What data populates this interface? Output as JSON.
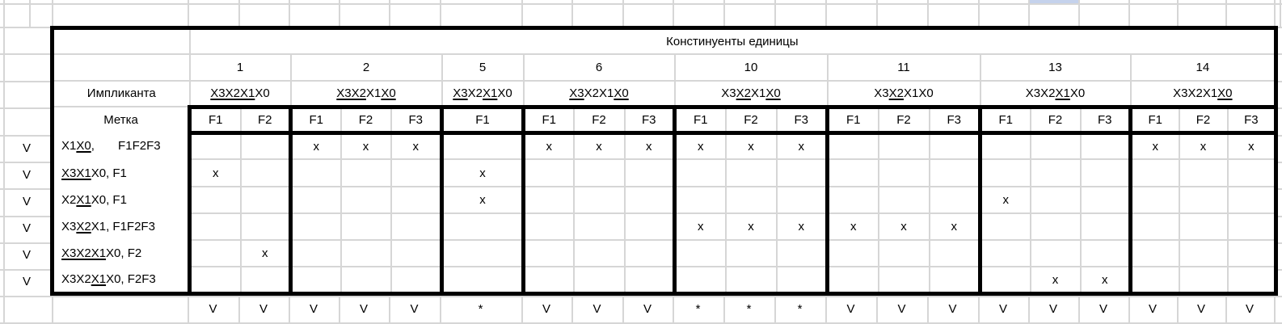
{
  "sheet": {
    "title": "Констинуенты единицы",
    "implicant_header": "Импликанта",
    "label_header": "Метка",
    "colors": {
      "highlight_cell": "#c5d2ec",
      "grid_line": "#d6d6d6",
      "table_border": "#000000"
    },
    "groups": [
      {
        "number": "1",
        "implicant": [
          {
            "t": "X3X2X1",
            "u": true
          },
          {
            "t": "X0",
            "u": false
          }
        ],
        "f_labels": [
          "F1",
          "F2"
        ]
      },
      {
        "number": "2",
        "implicant": [
          {
            "t": "X3X2",
            "u": true
          },
          {
            "t": "X1",
            "u": false
          },
          {
            "t": "X0",
            "u": true
          }
        ],
        "f_labels": [
          "F1",
          "F2",
          "F3"
        ]
      },
      {
        "number": "5",
        "implicant": [
          {
            "t": "X3",
            "u": true
          },
          {
            "t": "X2",
            "u": false
          },
          {
            "t": "X1",
            "u": true
          },
          {
            "t": "X0",
            "u": false
          }
        ],
        "f_labels": [
          "F1"
        ]
      },
      {
        "number": "6",
        "implicant": [
          {
            "t": "X3",
            "u": true
          },
          {
            "t": "X2X1",
            "u": false
          },
          {
            "t": "X0",
            "u": true
          }
        ],
        "f_labels": [
          "F1",
          "F2",
          "F3"
        ]
      },
      {
        "number": "10",
        "implicant": [
          {
            "t": "X3",
            "u": false
          },
          {
            "t": "X2",
            "u": true
          },
          {
            "t": "X1",
            "u": false
          },
          {
            "t": "X0",
            "u": true
          }
        ],
        "f_labels": [
          "F1",
          "F2",
          "F3"
        ]
      },
      {
        "number": "11",
        "implicant": [
          {
            "t": "X3",
            "u": false
          },
          {
            "t": "X2",
            "u": true
          },
          {
            "t": "X1X0",
            "u": false
          }
        ],
        "f_labels": [
          "F1",
          "F2",
          "F3"
        ]
      },
      {
        "number": "13",
        "implicant": [
          {
            "t": "X3X2",
            "u": false
          },
          {
            "t": "X1",
            "u": true
          },
          {
            "t": "X0",
            "u": false
          }
        ],
        "f_labels": [
          "F1",
          "F2",
          "F3"
        ]
      },
      {
        "number": "14",
        "implicant": [
          {
            "t": "X3X2X1",
            "u": false
          },
          {
            "t": "X0",
            "u": true
          }
        ],
        "f_labels": [
          "F1",
          "F2",
          "F3"
        ]
      }
    ],
    "rows": [
      {
        "check": "V",
        "label": [
          {
            "t": "X1",
            "u": false
          },
          {
            "t": "X0",
            "u": true
          },
          {
            "t": ",       F1F2F3",
            "u": false
          }
        ],
        "marks": [
          "",
          "",
          "x",
          "x",
          "x",
          "",
          "x",
          "x",
          "x",
          "x",
          "x",
          "x",
          "",
          "",
          "",
          "",
          "",
          "",
          "x",
          "x",
          "x"
        ]
      },
      {
        "check": "V",
        "label": [
          {
            "t": "X3X1",
            "u": true
          },
          {
            "t": "X0, F1",
            "u": false
          }
        ],
        "marks": [
          "x",
          "",
          "",
          "",
          "",
          "x",
          "",
          "",
          "",
          "",
          "",
          "",
          "",
          "",
          "",
          "",
          "",
          "",
          "",
          "",
          ""
        ]
      },
      {
        "check": "V",
        "label": [
          {
            "t": "X2",
            "u": false
          },
          {
            "t": "X1",
            "u": true
          },
          {
            "t": "X0, F1",
            "u": false
          }
        ],
        "marks": [
          "",
          "",
          "",
          "",
          "",
          "x",
          "",
          "",
          "",
          "",
          "",
          "",
          "",
          "",
          "",
          "x",
          "",
          "",
          "",
          "",
          ""
        ]
      },
      {
        "check": "V",
        "label": [
          {
            "t": "X3",
            "u": false
          },
          {
            "t": "X2",
            "u": true
          },
          {
            "t": "X1, F1F2F3",
            "u": false
          }
        ],
        "marks": [
          "",
          "",
          "",
          "",
          "",
          "",
          "",
          "",
          "",
          "x",
          "x",
          "x",
          "x",
          "x",
          "x",
          "",
          "",
          "",
          "",
          "",
          ""
        ]
      },
      {
        "check": "V",
        "label": [
          {
            "t": "X3X2X1",
            "u": true
          },
          {
            "t": "X0, F2",
            "u": false
          }
        ],
        "marks": [
          "",
          "x",
          "",
          "",
          "",
          "",
          "",
          "",
          "",
          "",
          "",
          "",
          "",
          "",
          "",
          "",
          "",
          "",
          "",
          "",
          ""
        ]
      },
      {
        "check": "V",
        "label": [
          {
            "t": "X3X2",
            "u": false
          },
          {
            "t": "X1",
            "u": true
          },
          {
            "t": "X0, F2F3",
            "u": false
          }
        ],
        "marks": [
          "",
          "",
          "",
          "",
          "",
          "",
          "",
          "",
          "",
          "",
          "",
          "",
          "",
          "",
          "",
          "",
          "x",
          "x",
          "",
          "",
          ""
        ]
      }
    ],
    "bottom_marks": [
      "V",
      "V",
      "V",
      "V",
      "V",
      "*",
      "V",
      "V",
      "V",
      "*",
      "*",
      "*",
      "V",
      "V",
      "V",
      "V",
      "V",
      "V",
      "V",
      "V",
      "V"
    ]
  }
}
